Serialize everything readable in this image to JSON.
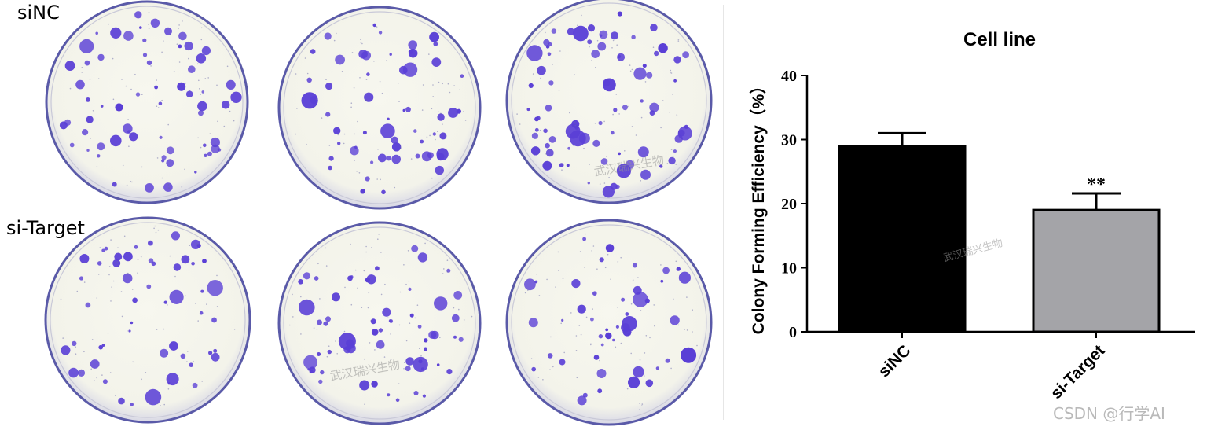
{
  "figure": {
    "row_labels": [
      "siNC",
      "si-Target"
    ],
    "plate_color": "#f3f3ea",
    "plate_rim_color": "#5a5aa8",
    "colony_color": "#5a3fd6",
    "watermark_text": "武汉瑞兴生物",
    "credit_text": "CSDN @行学AI"
  },
  "chart_data": {
    "type": "bar",
    "title": "Cell line",
    "ylabel": "Colony Forming Efficiency（%）",
    "xlabel": "",
    "categories": [
      "siNC",
      "si-Target"
    ],
    "values": [
      29,
      19
    ],
    "errors": [
      2,
      2.6
    ],
    "colors": [
      "#000000",
      "#a4a4a8"
    ],
    "ylim": [
      0,
      40
    ],
    "yticks": [
      0,
      10,
      20,
      30,
      40
    ],
    "significance": [
      "",
      "**"
    ],
    "grid": false,
    "legend": "none"
  }
}
